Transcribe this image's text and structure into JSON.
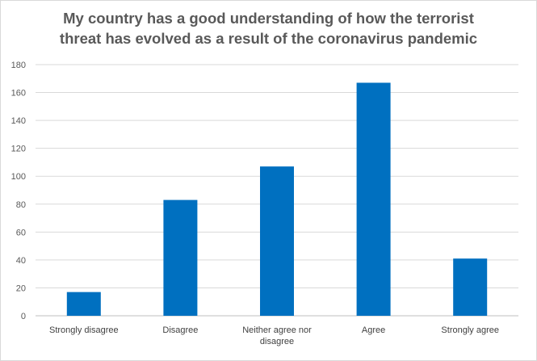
{
  "chart_data": {
    "type": "bar",
    "title_lines": [
      "My country has a good understanding of how the terrorist",
      "threat has evolved as a result of the coronavirus pandemic"
    ],
    "categories": [
      [
        "Strongly disagree"
      ],
      [
        "Disagree"
      ],
      [
        "Neither agree nor",
        "disagree"
      ],
      [
        "Agree"
      ],
      [
        "Strongly agree"
      ]
    ],
    "values": [
      17,
      83,
      107,
      167,
      41
    ],
    "ylim": [
      0,
      180
    ],
    "yticks": [
      "0",
      "20",
      "40",
      "60",
      "80",
      "100",
      "120",
      "140",
      "160",
      "180"
    ],
    "grid": true,
    "legend": "none",
    "bar_color": "#0070C0"
  }
}
